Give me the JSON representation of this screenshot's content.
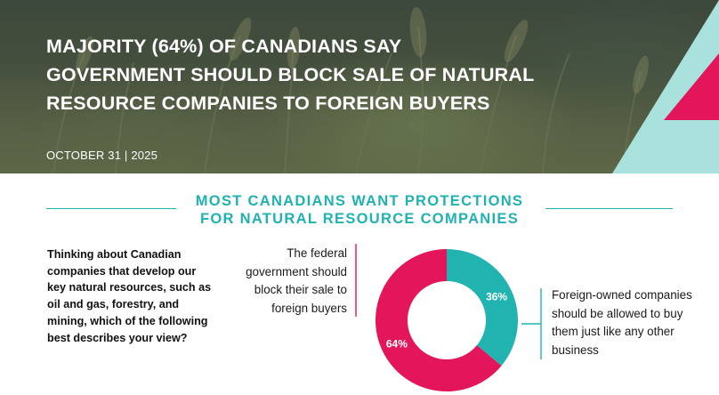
{
  "header": {
    "title": "MAJORITY (64%) OF CANADIANS SAY GOVERNMENT SHOULD BLOCK SALE OF NATURAL RESOURCE COMPANIES TO FOREIGN BUYERS",
    "date": "OCTOBER 31 | 2025"
  },
  "section": {
    "heading_line1": "MOST CANADIANS WANT PROTECTIONS",
    "heading_line2": "FOR NATURAL RESOURCE COMPANIES"
  },
  "question": "Thinking about Canadian companies that develop our key natural resources, such as oil and gas, forestry, and mining, which of the following best describes your view?",
  "colors": {
    "pink": "#e3165b",
    "teal": "#21b3b0",
    "heading_teal": "#1fb2b0",
    "mint": "#a9e2dc"
  },
  "chart_data": {
    "type": "pie",
    "donut": true,
    "slices": [
      {
        "label": "The federal government should block their sale to foreign buyers",
        "value": 64,
        "display": "64%",
        "color": "#e3165b"
      },
      {
        "label": "Foreign-owned companies should be allowed to buy them just like any other business",
        "value": 36,
        "display": "36%",
        "color": "#21b3b0"
      }
    ]
  }
}
